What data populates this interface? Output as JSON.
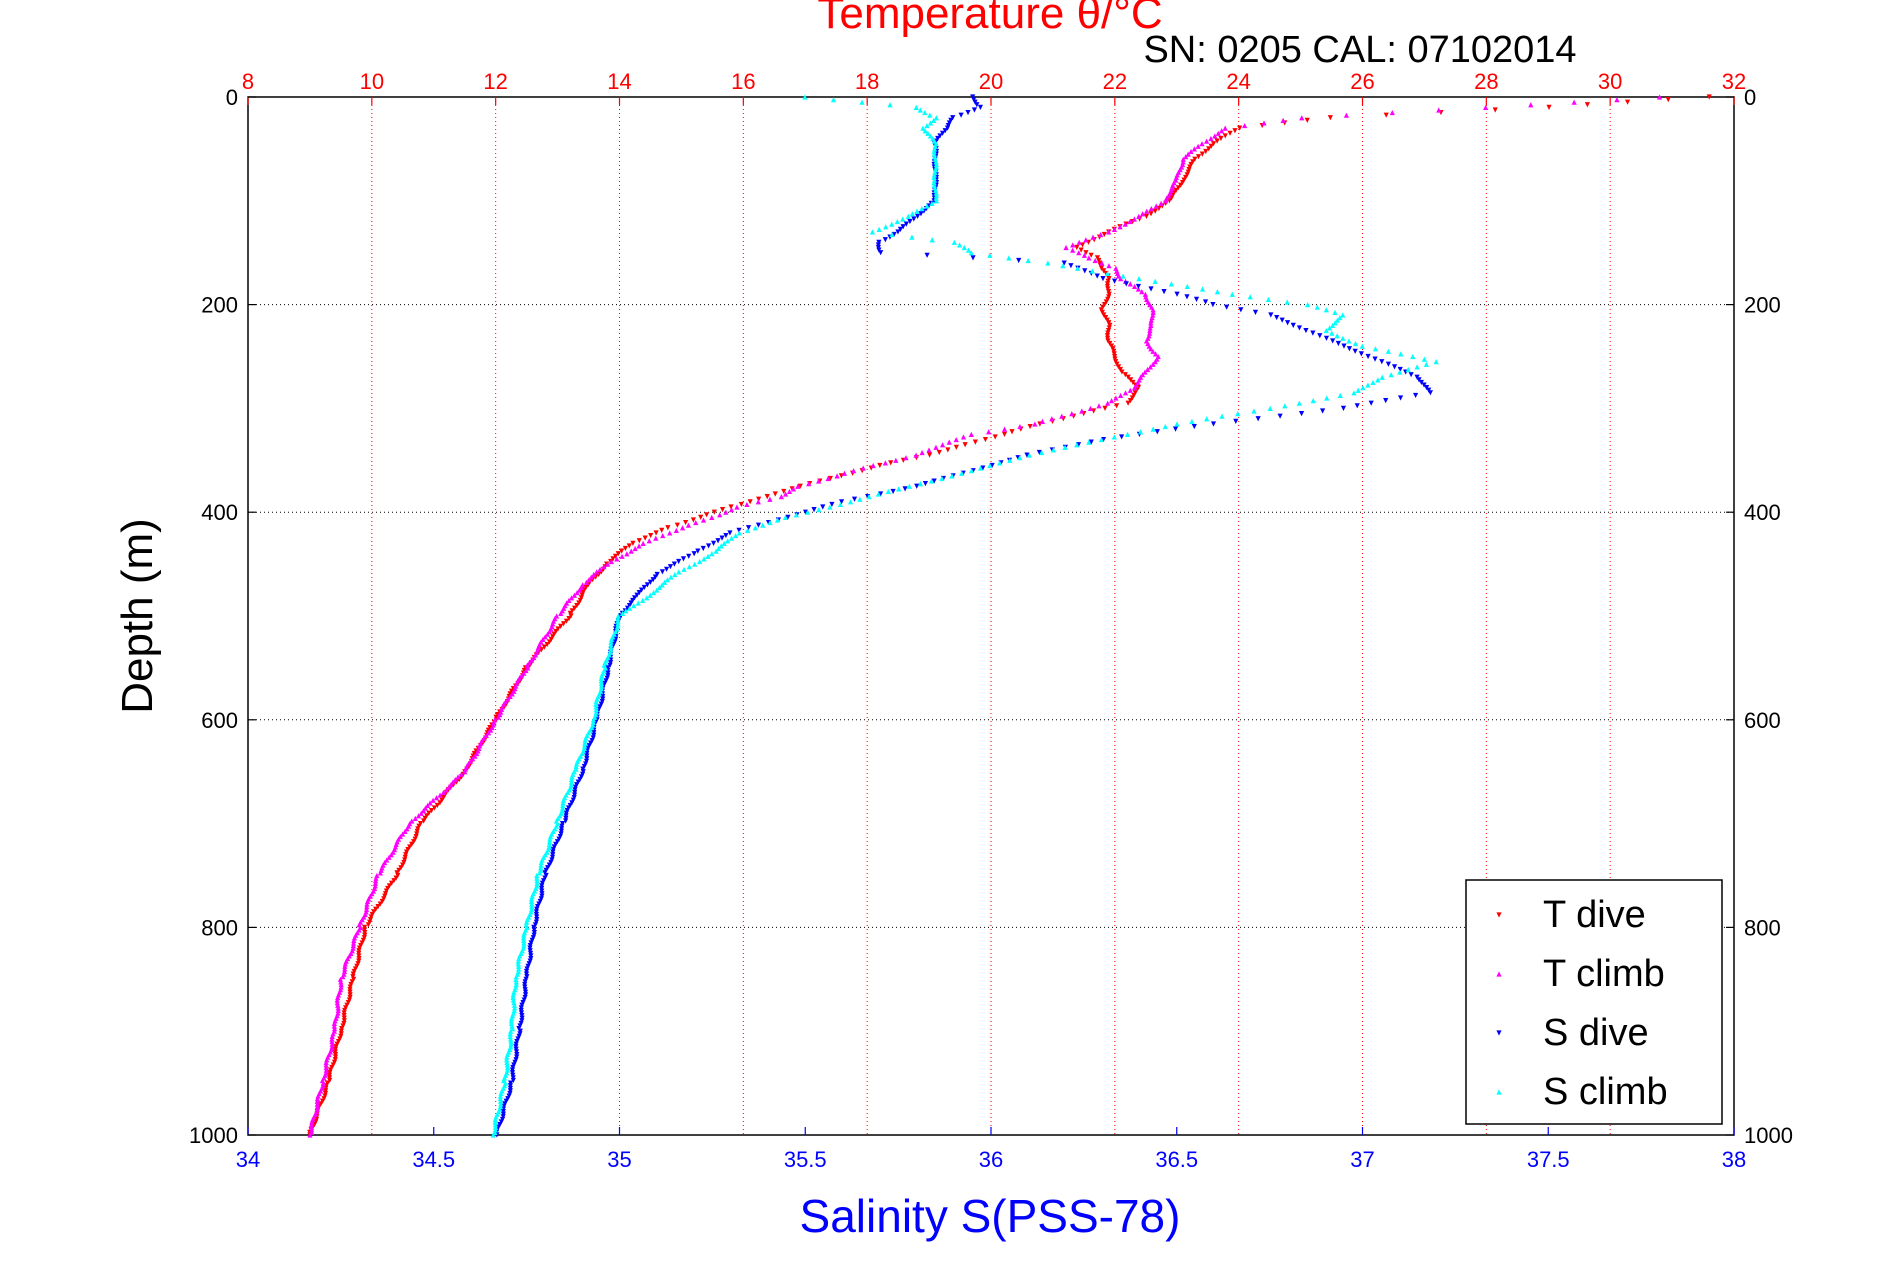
{
  "chart_data": {
    "type": "scatter",
    "title": "Temperature θ/°C",
    "subtitle": "SN: 0205  CAL: 07102014",
    "xlabel_top": "Temperature θ/°C",
    "xlabel_bottom": "Salinity S(PSS-78)",
    "ylabel": "Depth (m)",
    "x_top_range": [
      8,
      32
    ],
    "x_top_ticks": [
      "8",
      "10",
      "12",
      "14",
      "16",
      "18",
      "20",
      "22",
      "24",
      "26",
      "28",
      "30",
      "32"
    ],
    "x_bottom_range": [
      34,
      38
    ],
    "x_bottom_ticks": [
      "34",
      "34.5",
      "35",
      "35.5",
      "36",
      "36.5",
      "37",
      "37.5",
      "38"
    ],
    "y_range": [
      0,
      1000
    ],
    "y_ticks": [
      "0",
      "200",
      "400",
      "600",
      "800",
      "1000"
    ],
    "y_inverted": true,
    "grid": true,
    "legend_position": "bottom-right",
    "colors": {
      "temperature_axis": "#ff0000",
      "salinity_axis": "#0000ff",
      "t_dive": "#ff0000",
      "t_climb": "#ff00ff",
      "s_dive": "#0000ff",
      "s_climb": "#00ffff"
    },
    "series": [
      {
        "name": "T dive",
        "axis": "temperature",
        "marker": "down-triangle",
        "depth": [
          0,
          10,
          20,
          30,
          45,
          60,
          80,
          100,
          115,
          130,
          145,
          155,
          165,
          175,
          190,
          205,
          220,
          235,
          250,
          265,
          280,
          295,
          305,
          315,
          325,
          335,
          345,
          355,
          365,
          375,
          385,
          395,
          405,
          415,
          430,
          450,
          470,
          500,
          550,
          600,
          650,
          700,
          750,
          800,
          850,
          900,
          950,
          1000
        ],
        "values": [
          31.6,
          29,
          25.5,
          24,
          23.6,
          23.3,
          23.1,
          22.9,
          22.5,
          21.9,
          21.4,
          21.7,
          21.8,
          21.9,
          21.9,
          21.8,
          21.9,
          21.9,
          22,
          22.1,
          22.4,
          22.2,
          21.5,
          20.8,
          20.2,
          19.6,
          19,
          18.2,
          17.6,
          16.9,
          16.4,
          15.8,
          15.3,
          14.8,
          14.2,
          13.8,
          13.5,
          13.2,
          12.5,
          12,
          11.5,
          10.8,
          10.4,
          9.9,
          9.7,
          9.5,
          9.3,
          9
        ]
      },
      {
        "name": "T climb",
        "axis": "temperature",
        "marker": "up-triangle",
        "depth": [
          0,
          10,
          20,
          30,
          45,
          60,
          80,
          100,
          115,
          130,
          145,
          155,
          165,
          175,
          190,
          205,
          220,
          235,
          250,
          265,
          280,
          295,
          305,
          315,
          325,
          335,
          345,
          355,
          365,
          375,
          385,
          395,
          405,
          415,
          430,
          450,
          470,
          500,
          550,
          600,
          650,
          700,
          750,
          800,
          850,
          900,
          950,
          1000
        ],
        "values": [
          30.8,
          28,
          25,
          23.8,
          23.4,
          23.1,
          23,
          22.8,
          22.4,
          21.9,
          21.2,
          21.6,
          22,
          22.1,
          22.5,
          22.6,
          22.6,
          22.5,
          22.7,
          22.5,
          22.3,
          21.9,
          21.3,
          20.7,
          19.7,
          19.2,
          18.8,
          18.1,
          17.5,
          16.9,
          16.6,
          15.9,
          15.5,
          15,
          14.4,
          13.8,
          13.4,
          13,
          12.5,
          12,
          11.5,
          10.6,
          10.1,
          9.8,
          9.5,
          9.4,
          9.2,
          9
        ]
      },
      {
        "name": "S dive",
        "axis": "salinity",
        "marker": "down-triangle",
        "depth": [
          0,
          10,
          20,
          30,
          45,
          60,
          80,
          100,
          115,
          130,
          140,
          150,
          160,
          175,
          190,
          200,
          210,
          225,
          240,
          255,
          270,
          285,
          300,
          315,
          330,
          345,
          360,
          375,
          390,
          405,
          420,
          440,
          460,
          480,
          500,
          550,
          600,
          650,
          700,
          750,
          800,
          850,
          900,
          950,
          1000
        ],
        "values": [
          35.95,
          35.97,
          35.9,
          35.88,
          35.85,
          35.85,
          35.85,
          35.85,
          35.8,
          35.75,
          35.7,
          35.7,
          36.2,
          36.3,
          36.5,
          36.6,
          36.75,
          36.85,
          36.95,
          37.05,
          37.15,
          37.18,
          36.95,
          36.6,
          36.3,
          36.1,
          35.95,
          35.8,
          35.6,
          35.45,
          35.3,
          35.2,
          35.1,
          35.05,
          35,
          34.97,
          34.94,
          34.9,
          34.85,
          34.8,
          34.77,
          34.75,
          34.73,
          34.71,
          34.67
        ]
      },
      {
        "name": "S climb",
        "axis": "salinity",
        "marker": "up-triangle",
        "depth": [
          0,
          10,
          20,
          30,
          45,
          60,
          80,
          100,
          115,
          130,
          140,
          150,
          160,
          175,
          190,
          200,
          210,
          225,
          240,
          255,
          270,
          285,
          300,
          315,
          330,
          345,
          360,
          375,
          390,
          405,
          420,
          440,
          460,
          480,
          500,
          550,
          600,
          650,
          700,
          750,
          800,
          850,
          900,
          950,
          1000
        ],
        "values": [
          35.5,
          35.8,
          35.85,
          35.82,
          35.85,
          35.85,
          35.85,
          35.85,
          35.78,
          35.68,
          35.9,
          35.95,
          36.15,
          36.4,
          36.65,
          36.85,
          36.95,
          36.9,
          37,
          37.2,
          37.05,
          36.98,
          36.75,
          36.5,
          36.3,
          36.1,
          35.95,
          35.78,
          35.62,
          35.45,
          35.32,
          35.25,
          35.15,
          35.08,
          35,
          34.96,
          34.93,
          34.88,
          34.83,
          34.78,
          34.75,
          34.72,
          34.71,
          34.69,
          34.66
        ]
      }
    ]
  }
}
